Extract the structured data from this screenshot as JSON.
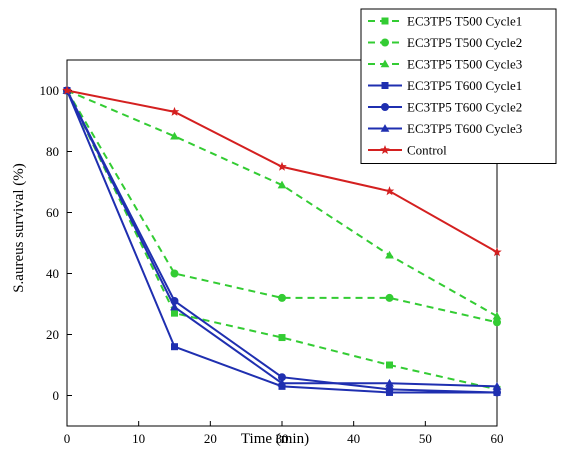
{
  "chart_data": {
    "type": "line",
    "title": "",
    "xlabel": "Time (min)",
    "ylabel": "S.aureus survival (%)",
    "xlim": [
      0,
      60
    ],
    "ylim": [
      -10,
      110
    ],
    "xticks": [
      0,
      10,
      20,
      30,
      40,
      50,
      60
    ],
    "yticks": [
      0,
      20,
      40,
      60,
      80,
      100
    ],
    "grid": false,
    "legend_position": "top-right",
    "x": [
      0,
      15,
      30,
      45,
      60
    ],
    "series": [
      {
        "name": "EC3TP5 T500 Cycle1",
        "color": "#33cc33",
        "dash": "dashed",
        "marker": "square",
        "values": [
          100,
          27,
          19,
          10,
          2
        ]
      },
      {
        "name": "EC3TP5 T500 Cycle2",
        "color": "#33cc33",
        "dash": "dashed",
        "marker": "circle",
        "values": [
          100,
          40,
          32,
          32,
          24
        ]
      },
      {
        "name": "EC3TP5 T500 Cycle3",
        "color": "#33cc33",
        "dash": "dashed",
        "marker": "triangle",
        "values": [
          100,
          85,
          69,
          46,
          26
        ]
      },
      {
        "name": "EC3TP5 T600 Cycle1",
        "color": "#1f2fb0",
        "dash": "solid",
        "marker": "square",
        "values": [
          100,
          16,
          3,
          1,
          1
        ]
      },
      {
        "name": "EC3TP5 T600 Cycle2",
        "color": "#1f2fb0",
        "dash": "solid",
        "marker": "circle",
        "values": [
          100,
          31,
          6,
          2,
          1
        ]
      },
      {
        "name": "EC3TP5 T600 Cycle3",
        "color": "#1f2fb0",
        "dash": "solid",
        "marker": "triangle",
        "values": [
          100,
          29,
          4,
          4,
          3
        ]
      },
      {
        "name": "Control",
        "color": "#d42020",
        "dash": "solid",
        "marker": "star",
        "values": [
          100,
          93,
          75,
          67,
          47
        ]
      }
    ]
  }
}
